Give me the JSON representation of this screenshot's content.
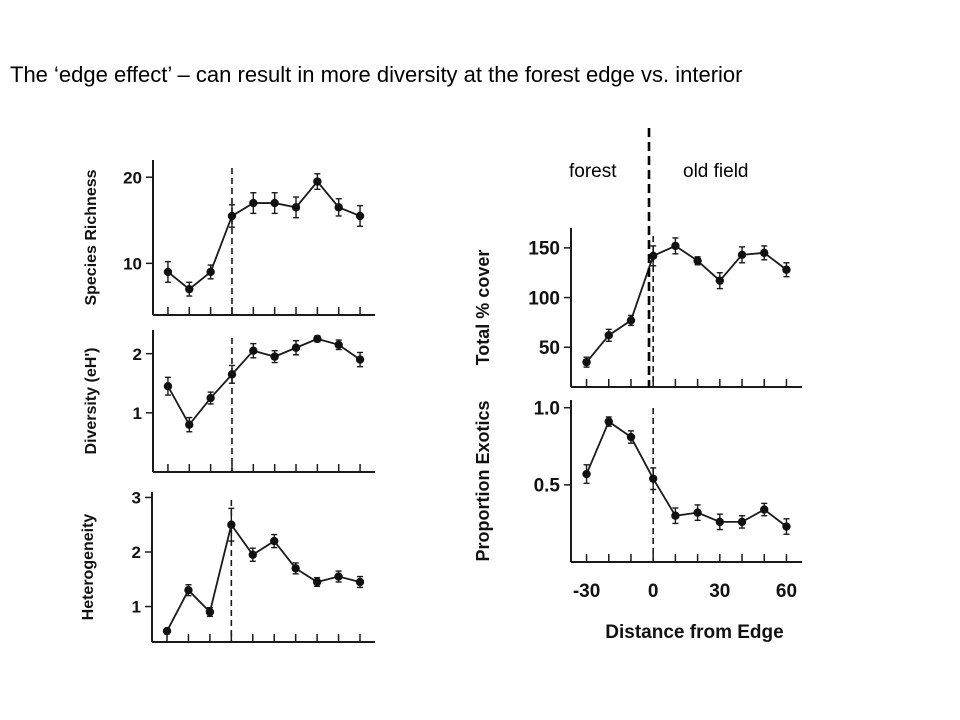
{
  "slide": {
    "title": "The ‘edge effect’ – can result in more diversity at the forest edge vs. interior",
    "label_left": "forest",
    "label_right": "old field"
  },
  "chart_data": [
    {
      "type": "line",
      "id": "species-richness",
      "ylabel": "Species Richness",
      "ylim": [
        4,
        22
      ],
      "yticks": [
        10,
        20
      ],
      "xlim": [
        -37,
        67
      ],
      "x": [
        -30,
        -20,
        -10,
        0,
        10,
        20,
        30,
        40,
        50,
        60
      ],
      "xticks": [
        -30,
        -20,
        -10,
        0,
        10,
        20,
        30,
        40,
        50,
        60
      ],
      "values": [
        9,
        7,
        9,
        15.5,
        17,
        17,
        16.5,
        19.5,
        16.5,
        15.5
      ],
      "errors": [
        1.2,
        0.8,
        0.8,
        1.3,
        1.2,
        1.2,
        1.2,
        0.9,
        1,
        1.2
      ],
      "edge_x": 0,
      "grid": false
    },
    {
      "type": "line",
      "id": "diversity",
      "ylabel": "Diversity (eH')",
      "ylim": [
        0,
        2.4
      ],
      "yticks": [
        1,
        2
      ],
      "xlim": [
        -37,
        67
      ],
      "x": [
        -30,
        -20,
        -10,
        0,
        10,
        20,
        30,
        40,
        50,
        60
      ],
      "xticks": [
        -30,
        -20,
        -10,
        0,
        10,
        20,
        30,
        40,
        50,
        60
      ],
      "values": [
        1.45,
        0.8,
        1.25,
        1.65,
        2.05,
        1.95,
        2.1,
        2.25,
        2.15,
        1.9
      ],
      "errors": [
        0.15,
        0.12,
        0.1,
        0.15,
        0.12,
        0.1,
        0.12,
        0.05,
        0.08,
        0.12
      ],
      "edge_x": 0,
      "grid": false
    },
    {
      "type": "line",
      "id": "heterogeneity",
      "ylabel": "Heterogeneity",
      "ylim": [
        0.35,
        3.1
      ],
      "yticks": [
        1,
        2,
        3
      ],
      "xlim": [
        -37,
        67
      ],
      "x": [
        -30,
        -20,
        -10,
        0,
        10,
        20,
        30,
        40,
        50,
        60
      ],
      "xticks": [
        -30,
        -20,
        -10,
        0,
        10,
        20,
        30,
        40,
        50,
        60
      ],
      "values": [
        0.55,
        1.3,
        0.9,
        2.5,
        1.95,
        2.2,
        1.7,
        1.45,
        1.55,
        1.45
      ],
      "errors": [
        0.05,
        0.1,
        0.08,
        0.3,
        0.12,
        0.12,
        0.1,
        0.08,
        0.1,
        0.1
      ],
      "edge_x": 0,
      "grid": false
    },
    {
      "type": "line",
      "id": "total-cover",
      "ylabel": "Total % cover",
      "ylim": [
        10,
        170
      ],
      "yticks": [
        50,
        100,
        150
      ],
      "xlim": [
        -37,
        67
      ],
      "x": [
        -30,
        -20,
        -10,
        0,
        10,
        20,
        30,
        40,
        50,
        60
      ],
      "xticks": [
        -30,
        -20,
        -10,
        0,
        10,
        20,
        30,
        40,
        50,
        60
      ],
      "values": [
        35,
        62,
        77,
        142,
        152,
        137,
        117,
        143,
        145,
        128
      ],
      "errors": [
        5,
        6,
        5,
        10,
        8,
        4,
        8,
        8,
        7,
        7
      ],
      "edge_x": 0,
      "grid": false
    },
    {
      "type": "line",
      "id": "proportion-exotics",
      "ylabel": "Proportion Exotics",
      "xlabel": "Distance from Edge",
      "ylim": [
        0,
        1.05
      ],
      "yticks": [
        0.5,
        1.0
      ],
      "ytick_labels": [
        "0.5",
        "1.0"
      ],
      "xlim": [
        -37,
        67
      ],
      "x": [
        -30,
        -20,
        -10,
        0,
        10,
        20,
        30,
        40,
        50,
        60
      ],
      "xticks": [
        -30,
        -20,
        -10,
        0,
        10,
        20,
        30,
        40,
        50,
        60
      ],
      "xtick_labels": [
        "-30",
        "0",
        "30",
        "60"
      ],
      "xtick_label_values": [
        -30,
        0,
        30,
        60
      ],
      "values": [
        0.57,
        0.91,
        0.81,
        0.54,
        0.3,
        0.32,
        0.26,
        0.26,
        0.34,
        0.23
      ],
      "errors": [
        0.06,
        0.03,
        0.04,
        0.07,
        0.05,
        0.05,
        0.05,
        0.04,
        0.04,
        0.05
      ],
      "edge_x": 0,
      "grid": false
    }
  ]
}
